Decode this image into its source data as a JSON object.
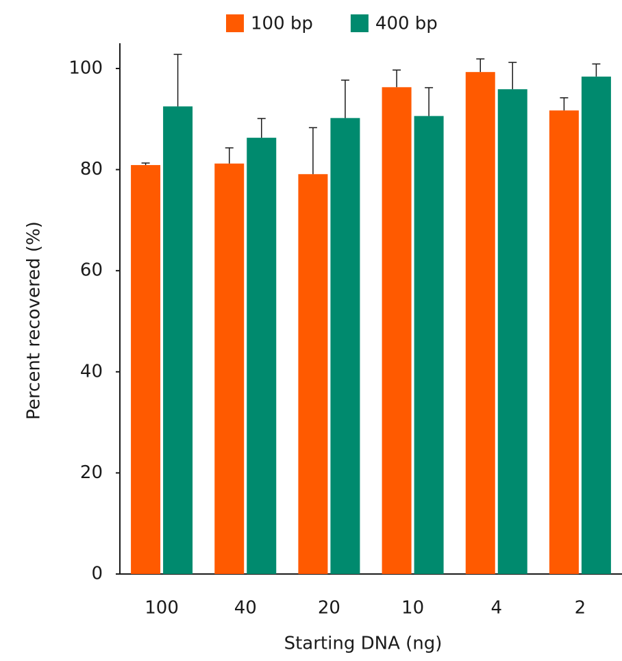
{
  "chart_data": {
    "type": "bar",
    "x_label": "Starting DNA (ng)",
    "y_label": "Percent recovered (%)",
    "categories": [
      "100",
      "40",
      "20",
      "10",
      "4",
      "2"
    ],
    "series": [
      {
        "name": "100 bp",
        "color": "#ff5a00",
        "values": [
          80.9,
          81.2,
          79.1,
          96.3,
          99.3,
          91.7
        ],
        "errors": [
          0.4,
          3.1,
          9.2,
          3.4,
          2.6,
          2.5
        ]
      },
      {
        "name": "400 bp",
        "color": "#008a6e",
        "values": [
          92.5,
          86.3,
          90.2,
          90.6,
          95.9,
          98.4
        ],
        "errors": [
          10.3,
          3.8,
          7.5,
          5.6,
          5.3,
          2.5
        ]
      }
    ],
    "ylim": [
      0,
      105
    ],
    "yticks": [
      0,
      20,
      40,
      60,
      80,
      100
    ],
    "grid": false,
    "legend": "top"
  }
}
